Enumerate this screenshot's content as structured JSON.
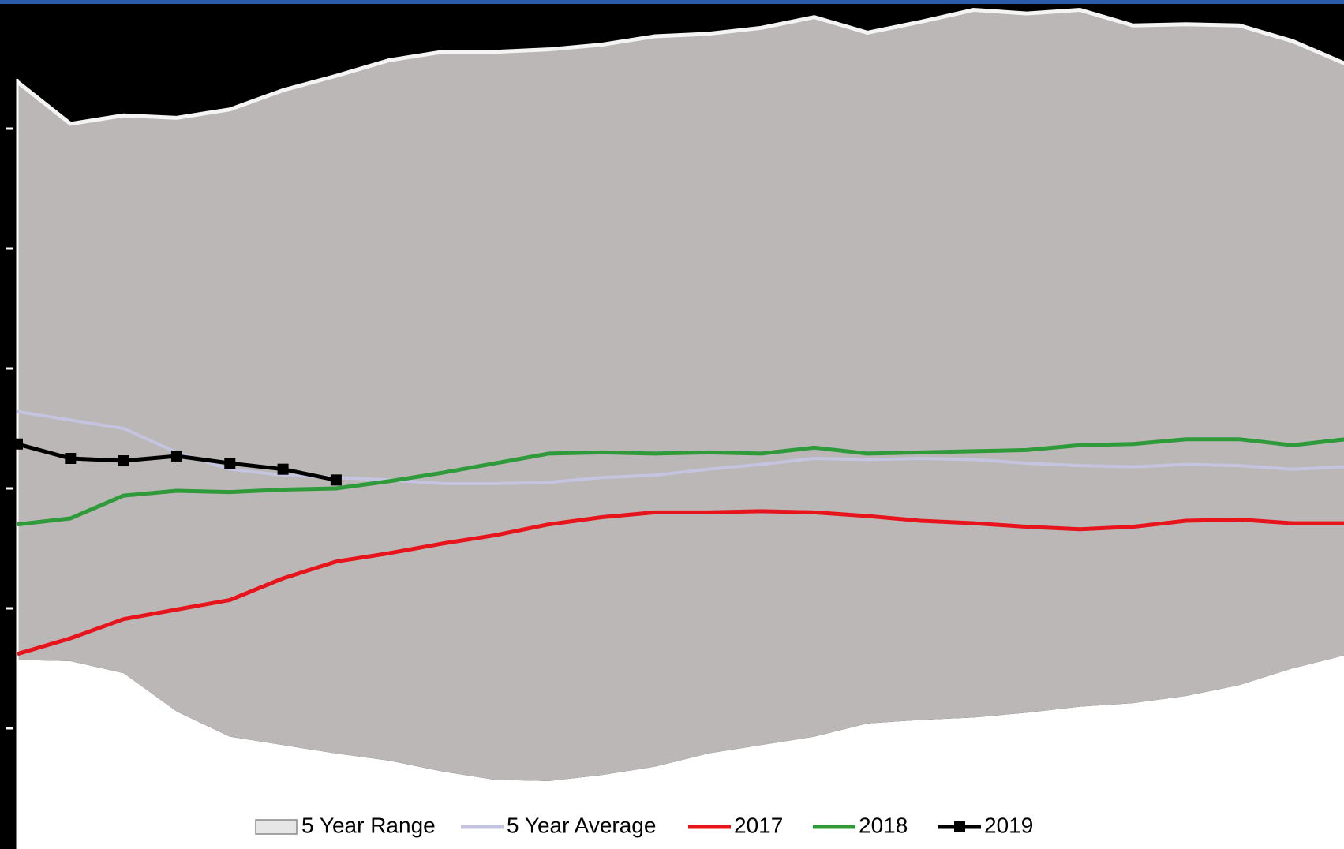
{
  "chart_data": {
    "type": "line",
    "categories": [
      null,
      null,
      null,
      null,
      null,
      null,
      null,
      null,
      null,
      null,
      null,
      null,
      null,
      null,
      null,
      null,
      null,
      null,
      null,
      null,
      null,
      null,
      null,
      null,
      null,
      null
    ],
    "ylim": [
      0,
      7
    ],
    "yticks": [
      1,
      2,
      3,
      4,
      5,
      6
    ],
    "series": [
      {
        "name": "5 Year Range",
        "type": "area",
        "color": "#bab7b6",
        "values": [
          6.39,
          6.04,
          6.11,
          6.09,
          6.16,
          6.32,
          6.44,
          6.57,
          6.64,
          6.64,
          6.66,
          6.7,
          6.77,
          6.79,
          6.84,
          6.93,
          6.8,
          6.89,
          6.99,
          6.96,
          6.99,
          6.86,
          6.87,
          6.86,
          6.73,
          6.54
        ],
        "lower": [
          1.57,
          1.56,
          1.46,
          1.14,
          0.93,
          0.86,
          0.79,
          0.73,
          0.64,
          0.57,
          0.56,
          0.61,
          0.68,
          0.79,
          0.86,
          0.93,
          1.04,
          1.07,
          1.09,
          1.13,
          1.18,
          1.21,
          1.27,
          1.36,
          1.5,
          1.61
        ]
      },
      {
        "name": "5 Year Average",
        "color": "#c4c4e0",
        "values": [
          3.64,
          3.57,
          3.5,
          3.3,
          3.16,
          3.11,
          3.09,
          3.07,
          3.04,
          3.04,
          3.05,
          3.09,
          3.11,
          3.16,
          3.2,
          3.25,
          3.24,
          3.25,
          3.24,
          3.21,
          3.19,
          3.18,
          3.2,
          3.19,
          3.16,
          3.18
        ]
      },
      {
        "name": "2017",
        "color": "#e8141b",
        "values": [
          1.62,
          1.75,
          1.91,
          1.99,
          2.07,
          2.25,
          2.39,
          2.46,
          2.54,
          2.61,
          2.7,
          2.76,
          2.8,
          2.8,
          2.81,
          2.8,
          2.77,
          2.73,
          2.71,
          2.68,
          2.66,
          2.68,
          2.73,
          2.74,
          2.71,
          2.71
        ]
      },
      {
        "name": "2018",
        "color": "#2f9a3a",
        "values": [
          2.7,
          2.75,
          2.94,
          2.98,
          2.97,
          2.99,
          3.0,
          3.06,
          3.13,
          3.21,
          3.29,
          3.3,
          3.29,
          3.3,
          3.29,
          3.34,
          3.29,
          3.3,
          3.31,
          3.32,
          3.36,
          3.37,
          3.41,
          3.41,
          3.36,
          3.41
        ]
      },
      {
        "name": "2019",
        "color": "#000000",
        "marker": "square",
        "values": [
          3.37,
          3.25,
          3.23,
          3.27,
          3.21,
          3.16,
          3.07,
          null,
          null,
          null,
          null,
          null,
          null,
          null,
          null,
          null,
          null,
          null,
          null,
          null,
          null,
          null,
          null,
          null,
          null,
          null
        ]
      }
    ]
  }
}
